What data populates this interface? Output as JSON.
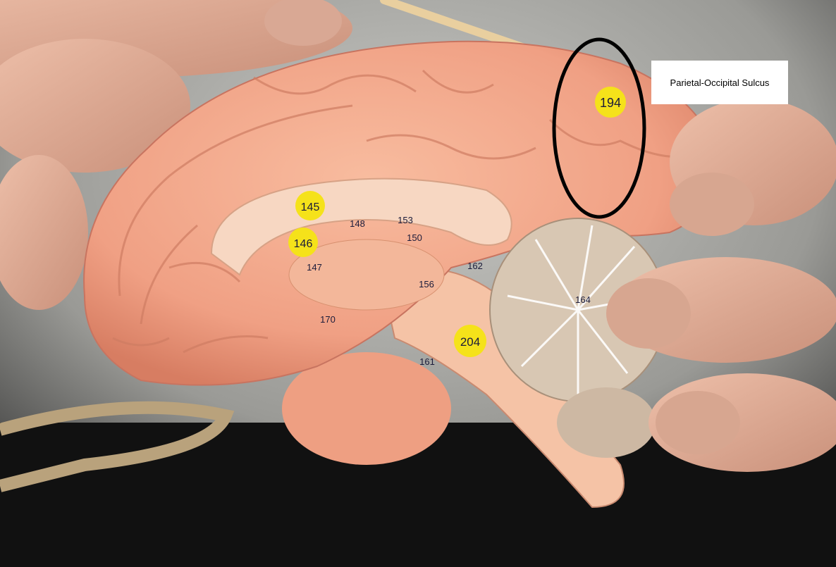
{
  "annotation": {
    "label": "Parietal-Occipital Sulcus"
  },
  "tags": {
    "t194": "194",
    "t145": "145",
    "t146": "146",
    "t204": "204",
    "t147": "147",
    "t148": "148",
    "t153": "153",
    "t150": "150",
    "t156": "156",
    "t161": "161",
    "t162": "162",
    "t164": "164",
    "t170": "170"
  },
  "colors": {
    "brain": "#f3a98a",
    "brain_shadow": "#d9856a",
    "tag_yellow": "#f5e21a",
    "tag_ink": "#1b1b3a",
    "circle": "#000000",
    "skin": "#e7b6a0"
  }
}
